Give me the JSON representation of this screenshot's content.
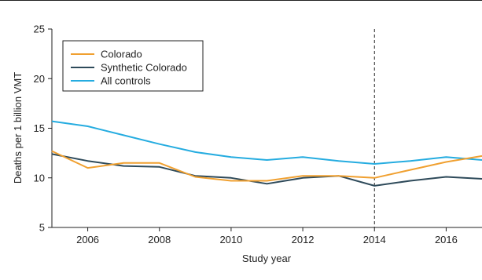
{
  "chart_data": {
    "type": "line",
    "title": "",
    "xlabel": "Study year",
    "ylabel": "Deaths per 1 billion VMT",
    "xlim": [
      2005,
      2017
    ],
    "ylim": [
      5,
      25
    ],
    "x_ticks": [
      2006,
      2008,
      2010,
      2012,
      2014,
      2016
    ],
    "y_ticks": [
      5,
      10,
      15,
      20,
      25
    ],
    "grid": false,
    "legend_position": "top-left",
    "reference_line": {
      "x": 2014,
      "style": "dashed",
      "color": "#222222"
    },
    "series": [
      {
        "name": "Colorado",
        "color": "#f0a030",
        "x": [
          2005,
          2006,
          2007,
          2008,
          2009,
          2010,
          2011,
          2012,
          2013,
          2014,
          2015,
          2016,
          2017
        ],
        "values": [
          12.7,
          11.0,
          11.5,
          11.5,
          10.1,
          9.7,
          9.7,
          10.2,
          10.2,
          10.0,
          10.8,
          11.6,
          12.2
        ]
      },
      {
        "name": "Synthetic Colorado",
        "color": "#2e4a5a",
        "x": [
          2005,
          2006,
          2007,
          2008,
          2009,
          2010,
          2011,
          2012,
          2013,
          2014,
          2015,
          2016,
          2017
        ],
        "values": [
          12.4,
          11.7,
          11.2,
          11.1,
          10.2,
          10.0,
          9.4,
          10.0,
          10.2,
          9.2,
          9.7,
          10.1,
          9.9
        ]
      },
      {
        "name": "All controls",
        "color": "#25ace0",
        "x": [
          2005,
          2006,
          2007,
          2008,
          2009,
          2010,
          2011,
          2012,
          2013,
          2014,
          2015,
          2016,
          2017
        ],
        "values": [
          15.7,
          15.2,
          14.3,
          13.4,
          12.6,
          12.1,
          11.8,
          12.1,
          11.7,
          11.4,
          11.7,
          12.1,
          11.8
        ]
      }
    ]
  }
}
